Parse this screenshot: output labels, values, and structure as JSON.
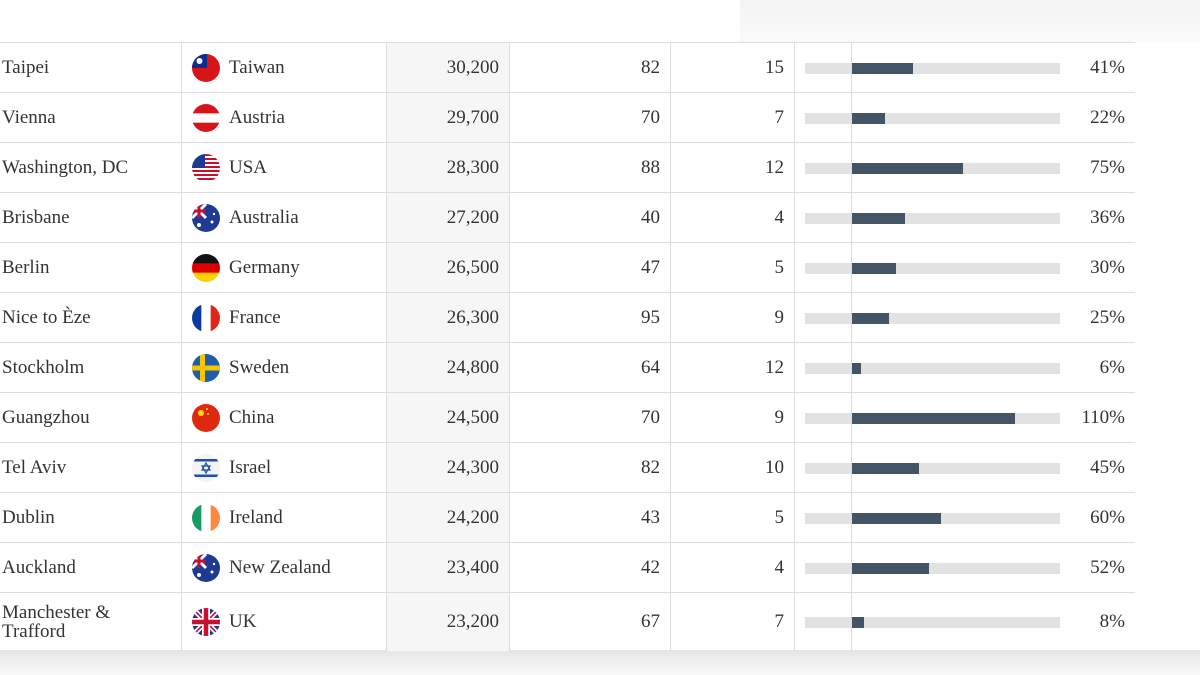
{
  "table": {
    "rows": [
      {
        "city": "Taipei",
        "country": "Taiwan",
        "visitors": "30,200",
        "a": 82,
        "b": 15,
        "pct": 41,
        "pct_label": "41%"
      },
      {
        "city": "Vienna",
        "country": "Austria",
        "visitors": "29,700",
        "a": 70,
        "b": 7,
        "pct": 22,
        "pct_label": "22%"
      },
      {
        "city": "Washington, DC",
        "country": "USA",
        "visitors": "28,300",
        "a": 88,
        "b": 12,
        "pct": 75,
        "pct_label": "75%"
      },
      {
        "city": "Brisbane",
        "country": "Australia",
        "visitors": "27,200",
        "a": 40,
        "b": 4,
        "pct": 36,
        "pct_label": "36%"
      },
      {
        "city": "Berlin",
        "country": "Germany",
        "visitors": "26,500",
        "a": 47,
        "b": 5,
        "pct": 30,
        "pct_label": "30%"
      },
      {
        "city": "Nice to Èze",
        "country": "France",
        "visitors": "26,300",
        "a": 95,
        "b": 9,
        "pct": 25,
        "pct_label": "25%"
      },
      {
        "city": "Stockholm",
        "country": "Sweden",
        "visitors": "24,800",
        "a": 64,
        "b": 12,
        "pct": 6,
        "pct_label": "6%"
      },
      {
        "city": "Guangzhou",
        "country": "China",
        "visitors": "24,500",
        "a": 70,
        "b": 9,
        "pct": 110,
        "pct_label": "110%"
      },
      {
        "city": "Tel Aviv",
        "country": "Israel",
        "visitors": "24,300",
        "a": 82,
        "b": 10,
        "pct": 45,
        "pct_label": "45%"
      },
      {
        "city": "Dublin",
        "country": "Ireland",
        "visitors": "24,200",
        "a": 43,
        "b": 5,
        "pct": 60,
        "pct_label": "60%"
      },
      {
        "city": "Auckland",
        "country": "New Zealand",
        "visitors": "23,400",
        "a": 42,
        "b": 4,
        "pct": 52,
        "pct_label": "52%"
      },
      {
        "city": "Manchester & Trafford",
        "country": "UK",
        "visitors": "23,200",
        "a": 67,
        "b": 7,
        "pct": 8,
        "pct_label": "8%"
      }
    ]
  }
}
